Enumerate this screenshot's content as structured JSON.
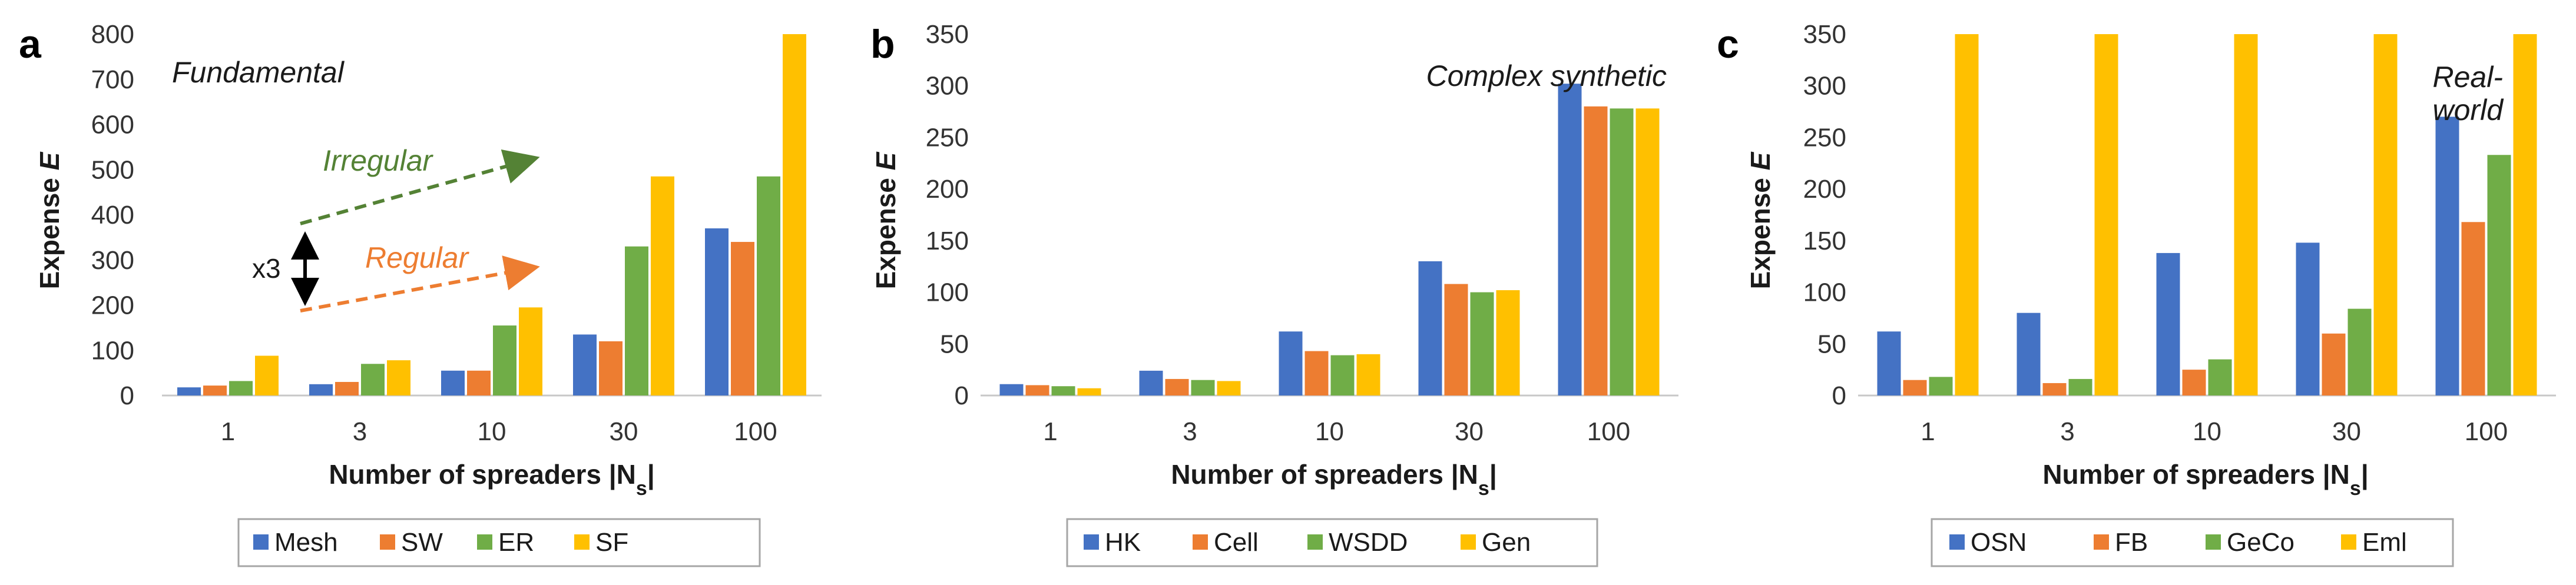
{
  "colors": [
    "#4472C4",
    "#ED7D31",
    "#70AD47",
    "#FFC000"
  ],
  "chart_data": [
    {
      "type": "bar",
      "panel_letter": "a",
      "corner_label": "Fundamental",
      "categories": [
        "1",
        "3",
        "10",
        "30",
        "100"
      ],
      "series": [
        {
          "name": "Mesh",
          "values": [
            18,
            25,
            55,
            135,
            370
          ]
        },
        {
          "name": "SW",
          "values": [
            22,
            30,
            55,
            120,
            340
          ]
        },
        {
          "name": "ER",
          "values": [
            32,
            70,
            155,
            330,
            485
          ]
        },
        {
          "name": "SF",
          "values": [
            88,
            78,
            195,
            485,
            800
          ]
        }
      ],
      "ylim": [
        0,
        800
      ],
      "yticks": [
        "0",
        "100",
        "200",
        "300",
        "400",
        "500",
        "600",
        "700",
        "800"
      ],
      "ylabel": "Expense",
      "ylabel_var": "E",
      "xlabel": "Number of spreaders |N",
      "xlabel_sub": "s",
      "xlabel_end": "|",
      "annotations": {
        "irregular": "Irregular",
        "regular": "Regular",
        "x3": "x3"
      }
    },
    {
      "type": "bar",
      "panel_letter": "b",
      "corner_label": "Complex synthetic",
      "categories": [
        "1",
        "3",
        "10",
        "30",
        "100"
      ],
      "series": [
        {
          "name": "HK",
          "values": [
            11,
            24,
            62,
            130,
            302
          ]
        },
        {
          "name": "Cell",
          "values": [
            10,
            16,
            43,
            108,
            280
          ]
        },
        {
          "name": "WSDD",
          "values": [
            9,
            15,
            39,
            100,
            278
          ]
        },
        {
          "name": "Gen",
          "values": [
            7,
            14,
            40,
            102,
            278
          ]
        }
      ],
      "ylim": [
        0,
        350
      ],
      "yticks": [
        "0",
        "50",
        "100",
        "150",
        "200",
        "250",
        "300",
        "350"
      ],
      "ylabel": "Expense",
      "ylabel_var": "E",
      "xlabel": "Number of spreaders |N",
      "xlabel_sub": "s",
      "xlabel_end": "|"
    },
    {
      "type": "bar",
      "panel_letter": "c",
      "corner_label": "Real-world",
      "corner_label_lines": [
        "Real-",
        "world"
      ],
      "categories": [
        "1",
        "3",
        "10",
        "30",
        "100"
      ],
      "series": [
        {
          "name": "OSN",
          "values": [
            62,
            80,
            138,
            148,
            270
          ]
        },
        {
          "name": "FB",
          "values": [
            15,
            12,
            25,
            60,
            168
          ]
        },
        {
          "name": "GeCo",
          "values": [
            18,
            16,
            35,
            84,
            233
          ]
        },
        {
          "name": "Eml",
          "values": [
            350,
            350,
            350,
            350,
            350
          ]
        }
      ],
      "ylim": [
        0,
        350
      ],
      "yticks": [
        "0",
        "50",
        "100",
        "150",
        "200",
        "250",
        "300",
        "350"
      ],
      "ylabel": "Expense",
      "ylabel_var": "E",
      "xlabel": "Number of spreaders |N",
      "xlabel_sub": "s",
      "xlabel_end": "|"
    }
  ]
}
